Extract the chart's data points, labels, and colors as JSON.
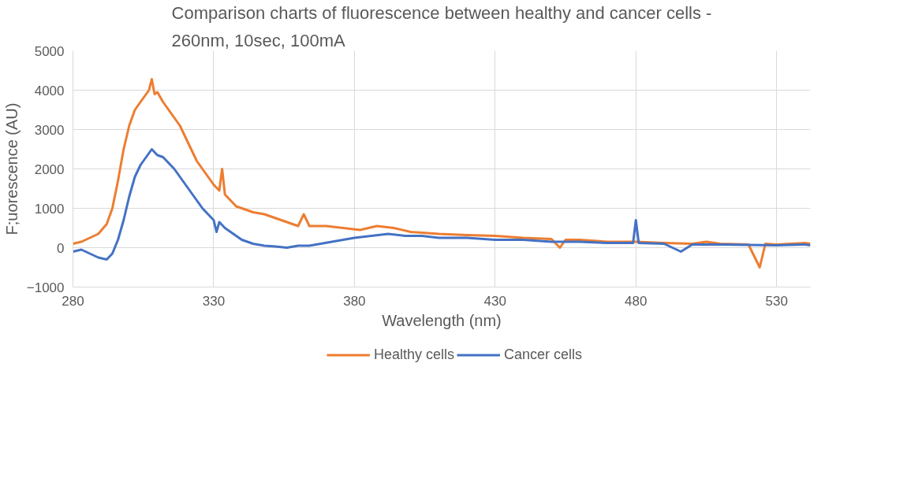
{
  "chart_data": {
    "type": "line",
    "title": "Comparison charts of fluorescence between healthy and cancer cells -\n260nm, 10sec, 100mA",
    "xlabel": "Wavelength (nm)",
    "ylabel": "F;uorescence (AU)",
    "xlim": [
      280,
      542
    ],
    "xticks": [
      280,
      330,
      380,
      430,
      480,
      530
    ],
    "ylim": [
      -1000,
      5000
    ],
    "yticks": [
      -1000,
      0,
      1000,
      2000,
      3000,
      4000,
      5000
    ],
    "grid": true,
    "legend": "bottom",
    "marker": "none",
    "line_style": "solid",
    "series": [
      {
        "name": "Healthy cells",
        "color": "#ed7d31",
        "x": [
          280,
          283,
          286,
          289,
          292,
          294,
          296,
          298,
          300,
          302,
          304,
          306,
          307,
          308,
          309,
          310,
          312,
          314,
          316,
          318,
          320,
          322,
          324,
          326,
          328,
          330,
          332,
          333,
          334,
          336,
          338,
          340,
          344,
          348,
          352,
          356,
          360,
          362,
          364,
          370,
          376,
          382,
          388,
          394,
          400,
          410,
          420,
          430,
          440,
          450,
          453,
          455,
          460,
          470,
          480,
          490,
          500,
          505,
          510,
          520,
          524,
          526,
          530,
          535,
          540,
          542
        ],
        "values": [
          100,
          150,
          250,
          350,
          600,
          1000,
          1700,
          2500,
          3100,
          3500,
          3700,
          3900,
          4000,
          4280,
          3900,
          3950,
          3700,
          3500,
          3300,
          3100,
          2800,
          2500,
          2200,
          2000,
          1800,
          1600,
          1450,
          2000,
          1350,
          1200,
          1050,
          1000,
          900,
          850,
          750,
          650,
          550,
          850,
          550,
          550,
          500,
          450,
          550,
          500,
          400,
          350,
          320,
          300,
          250,
          220,
          0,
          200,
          200,
          150,
          150,
          120,
          100,
          150,
          100,
          80,
          -500,
          100,
          80,
          100,
          120,
          100
        ]
      },
      {
        "name": "Cancer cells",
        "color": "#4472c4",
        "x": [
          280,
          283,
          286,
          289,
          292,
          294,
          296,
          298,
          300,
          302,
          304,
          306,
          308,
          310,
          312,
          314,
          316,
          318,
          320,
          322,
          324,
          326,
          328,
          330,
          331,
          332,
          334,
          336,
          338,
          340,
          344,
          348,
          352,
          356,
          360,
          364,
          368,
          372,
          376,
          380,
          386,
          392,
          398,
          404,
          410,
          420,
          430,
          440,
          450,
          460,
          470,
          479,
          480,
          481,
          490,
          496,
          500,
          510,
          520,
          530,
          540,
          542
        ],
        "values": [
          -100,
          -50,
          -150,
          -250,
          -300,
          -150,
          200,
          700,
          1300,
          1800,
          2100,
          2300,
          2500,
          2350,
          2300,
          2150,
          2000,
          1800,
          1600,
          1400,
          1200,
          1000,
          850,
          700,
          400,
          650,
          500,
          400,
          300,
          200,
          100,
          50,
          30,
          0,
          50,
          50,
          100,
          150,
          200,
          250,
          300,
          350,
          300,
          300,
          250,
          250,
          200,
          200,
          150,
          150,
          120,
          120,
          700,
          120,
          100,
          -100,
          80,
          80,
          70,
          60,
          80,
          60
        ]
      }
    ]
  }
}
